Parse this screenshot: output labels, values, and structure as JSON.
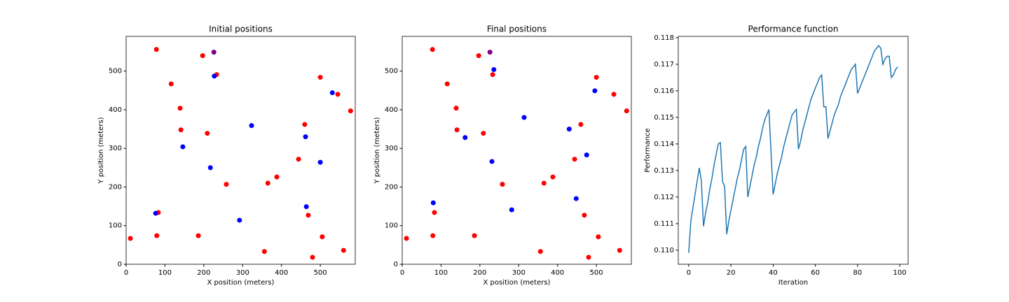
{
  "chart_data": [
    {
      "type": "scatter",
      "title": "Initial positions",
      "xlabel": "X position (meters)",
      "ylabel": "Y position (meters)",
      "xlim": [
        0,
        590
      ],
      "ylim": [
        0,
        590
      ],
      "xticks": [
        0,
        100,
        200,
        300,
        400,
        500
      ],
      "yticks": [
        0,
        100,
        200,
        300,
        400,
        500
      ],
      "series": [
        {
          "color": "red",
          "x": [
            11,
            78,
            116,
            139,
            141,
            197,
            209,
            233,
            258,
            365,
            388,
            444,
            460,
            500,
            545,
            578,
            469,
            505,
            480,
            560,
            356,
            186,
            79,
            83
          ],
          "values": [
            67,
            556,
            467,
            404,
            348,
            540,
            339,
            491,
            207,
            210,
            226,
            272,
            362,
            484,
            440,
            397,
            127,
            71,
            18,
            36,
            33,
            74,
            74,
            134
          ]
        },
        {
          "color": "blue",
          "x": [
            76,
            146,
            217,
            227,
            323,
            292,
            462,
            500,
            464,
            531
          ],
          "values": [
            132,
            304,
            250,
            487,
            359,
            114,
            330,
            264,
            149,
            444
          ]
        },
        {
          "color": "purple",
          "x": [
            226
          ],
          "values": [
            549
          ]
        }
      ]
    },
    {
      "type": "scatter",
      "title": "Final positions",
      "xlabel": "X position (meters)",
      "ylabel": "Y position (meters)",
      "xlim": [
        0,
        590
      ],
      "ylim": [
        0,
        590
      ],
      "xticks": [
        0,
        100,
        200,
        300,
        400,
        500
      ],
      "yticks": [
        0,
        100,
        200,
        300,
        400,
        500
      ],
      "series": [
        {
          "color": "red",
          "x": [
            11,
            78,
            116,
            139,
            141,
            197,
            209,
            233,
            258,
            365,
            388,
            444,
            460,
            500,
            545,
            578,
            469,
            505,
            480,
            560,
            356,
            186,
            79,
            83
          ],
          "values": [
            67,
            556,
            467,
            404,
            348,
            540,
            339,
            491,
            207,
            210,
            226,
            272,
            362,
            484,
            440,
            397,
            127,
            71,
            18,
            36,
            33,
            74,
            74,
            134
          ]
        },
        {
          "color": "blue",
          "x": [
            80,
            162,
            231,
            236,
            314,
            282,
            430,
            496,
            475,
            448
          ],
          "values": [
            159,
            328,
            266,
            504,
            380,
            141,
            350,
            449,
            283,
            170
          ]
        },
        {
          "color": "purple",
          "x": [
            226
          ],
          "values": [
            549
          ]
        }
      ]
    },
    {
      "type": "line",
      "title": "Performance function",
      "xlabel": "Iteration",
      "ylabel": "Performance",
      "xlim": [
        -4.95,
        103.95
      ],
      "ylim": [
        0.10947,
        0.11805
      ],
      "xticks": [
        0,
        20,
        40,
        60,
        80,
        100
      ],
      "yticks": [
        {
          "value": 0.11,
          "label": "0.110"
        },
        0.111,
        0.112,
        0.113,
        0.114,
        0.115,
        0.116,
        0.117,
        0.118
      ],
      "series": [
        {
          "color": "#1f77b4",
          "x": [
            0,
            1,
            2,
            3,
            4,
            5,
            6,
            7,
            8,
            9,
            10,
            11,
            12,
            13,
            14,
            15,
            16,
            17,
            18,
            19,
            20,
            21,
            22,
            23,
            24,
            25,
            26,
            27,
            28,
            29,
            30,
            31,
            32,
            33,
            34,
            35,
            36,
            37,
            38,
            39,
            40,
            41,
            42,
            43,
            44,
            45,
            46,
            47,
            48,
            49,
            50,
            51,
            52,
            53,
            54,
            55,
            56,
            57,
            58,
            59,
            60,
            61,
            62,
            63,
            64,
            65,
            66,
            67,
            68,
            69,
            70,
            71,
            72,
            73,
            74,
            75,
            76,
            77,
            78,
            79,
            80,
            81,
            82,
            83,
            84,
            85,
            86,
            87,
            88,
            89,
            90,
            91,
            92,
            93,
            94,
            95,
            96,
            97,
            98,
            99
          ],
          "values": [
            0.1099,
            0.1111,
            0.1116,
            0.1121,
            0.1126,
            0.1131,
            0.1126,
            0.1109,
            0.1114,
            0.1118,
            0.1123,
            0.1127,
            0.1132,
            0.1136,
            0.114,
            0.11405,
            0.1126,
            0.1124,
            0.1106,
            0.1111,
            0.1115,
            0.1119,
            0.1123,
            0.1127,
            0.113,
            0.1134,
            0.1138,
            0.1139,
            0.112,
            0.1124,
            0.1128,
            0.1132,
            0.1135,
            0.1139,
            0.1142,
            0.1146,
            0.1149,
            0.1151,
            0.1153,
            0.1137,
            0.1121,
            0.1125,
            0.1129,
            0.1132,
            0.1135,
            0.1139,
            0.1142,
            0.1145,
            0.1148,
            0.1151,
            0.1152,
            0.1153,
            0.1138,
            0.1141,
            0.1145,
            0.1148,
            0.1151,
            0.1154,
            0.1157,
            0.1159,
            0.1161,
            0.1163,
            0.1165,
            0.1166,
            0.1154,
            0.1154,
            0.1142,
            0.1145,
            0.1148,
            0.1151,
            0.1153,
            0.1155,
            0.1158,
            0.116,
            0.1162,
            0.1164,
            0.1166,
            0.1168,
            0.1169,
            0.117,
            0.1159,
            0.1161,
            0.1163,
            0.1165,
            0.1167,
            0.1169,
            0.1171,
            0.1173,
            0.1175,
            0.1176,
            0.1177,
            0.1176,
            0.117,
            0.1172,
            0.1173,
            0.1173,
            0.1165,
            0.1166,
            0.1168,
            0.1169
          ]
        }
      ]
    }
  ]
}
